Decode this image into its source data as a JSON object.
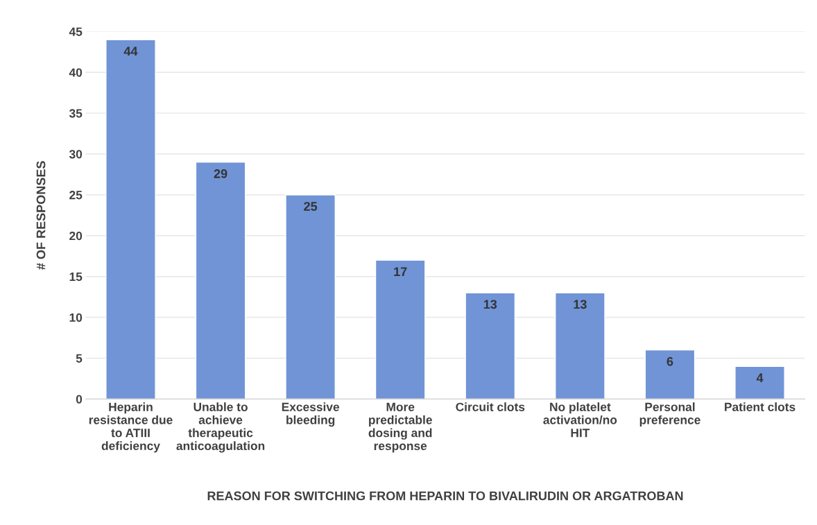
{
  "chart_data": {
    "type": "bar",
    "xlabel": "REASON FOR SWITCHING FROM HEPARIN TO BIVALIRUDIN OR ARGATROBAN",
    "ylabel": "# OF RESPONSES",
    "categories": [
      "Heparin\nresistance due\nto ATIII\ndeficiency",
      "Unable to\nachieve\ntherapeutic\nanticoagulation",
      "Excessive\nbleeding",
      "More\npredictable\ndosing and\nresponse",
      "Circuit clots",
      "No platelet\nactivation/no\nHIT",
      "Personal\npreference",
      "Patient clots"
    ],
    "values": [
      44,
      29,
      25,
      17,
      13,
      13,
      6,
      4
    ],
    "color": "#7094d6",
    "ylim": [
      0,
      45
    ],
    "yticks": [
      0,
      5,
      10,
      15,
      20,
      25,
      30,
      35,
      40,
      45
    ],
    "grid": "y",
    "data_labels": true
  }
}
